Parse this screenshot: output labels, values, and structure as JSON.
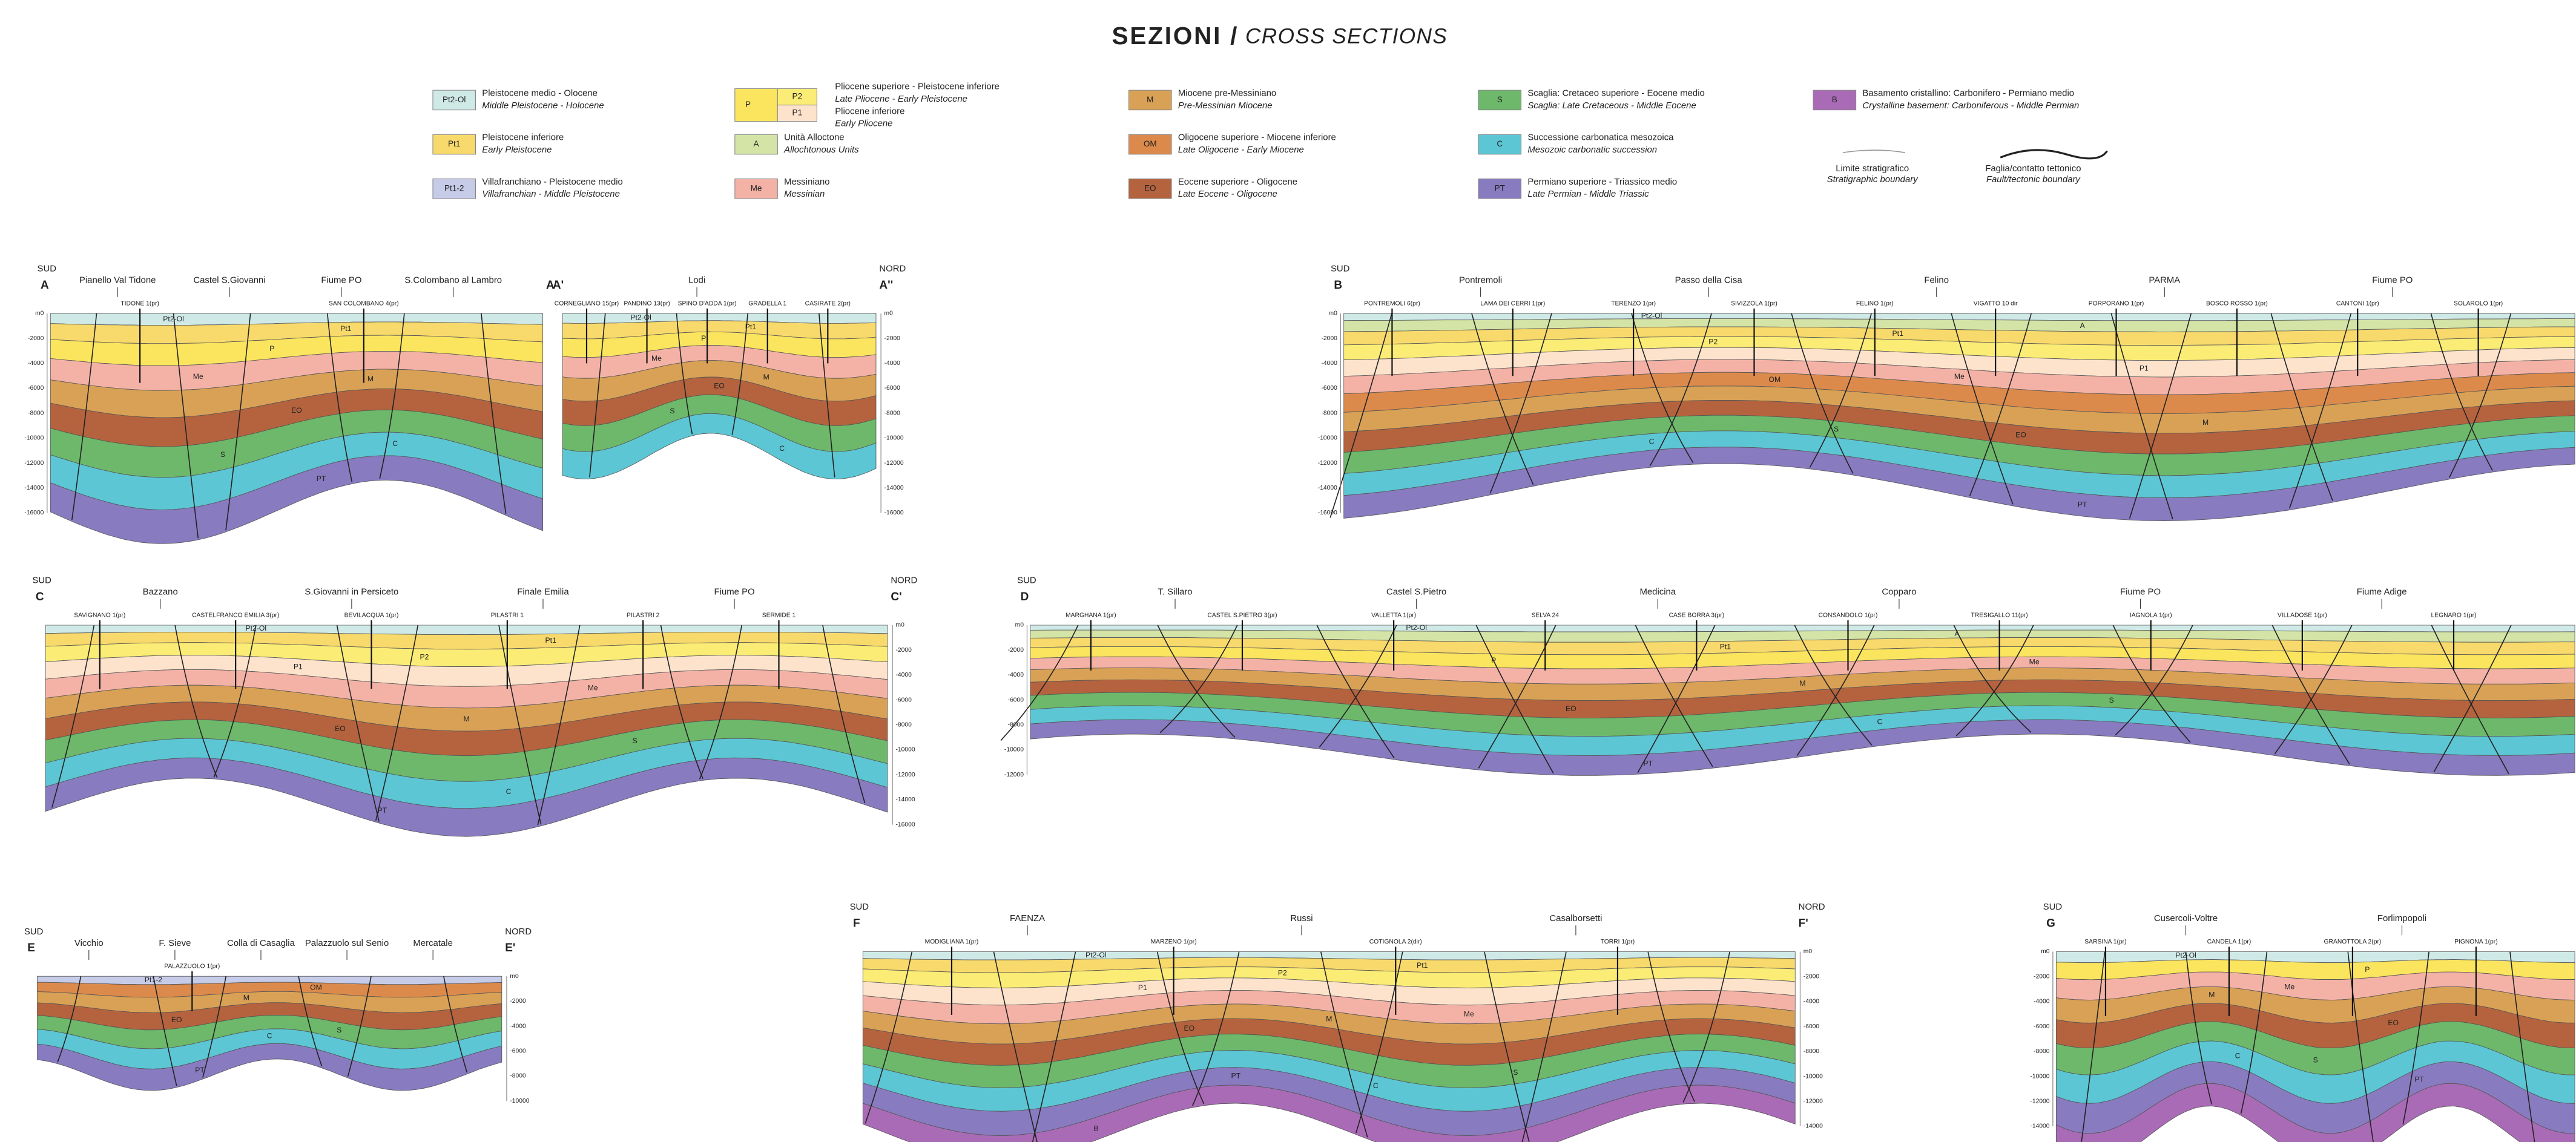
{
  "header": {
    "title": "SEZIONI /",
    "subtitle": "CROSS SECTIONS"
  },
  "legend": {
    "items": [
      {
        "code": "Pt2-Ol",
        "color": "#cfe9e7",
        "lines": [
          "Pleistocene medio - Olocene",
          "Middle Pleistocene - Holocene"
        ]
      },
      {
        "code": "Pt1",
        "color": "#f8d96b",
        "lines": [
          "Pleistocene inferiore",
          "Early Pleistocene"
        ]
      },
      {
        "code": "Pt1-2",
        "color": "#c6cbe8",
        "lines": [
          "Villafranchiano - Pleistocene medio",
          "Villafranchian - Middle Pleistocene"
        ]
      },
      {
        "code": "P",
        "color": "#fbe45e",
        "subs": [
          {
            "code": "P2",
            "color": "#fbec75"
          },
          {
            "code": "P1",
            "color": "#fde2cc"
          }
        ],
        "lines": [
          "Pliocene superiore - Pleistocene inferiore",
          "Late Pliocene - Early Pleistocene",
          "Pliocene inferiore",
          "Early Pliocene"
        ]
      },
      {
        "code": "A",
        "color": "#d3e4a6",
        "lines": [
          "Unità Alloctone",
          "Allochtonous Units"
        ]
      },
      {
        "code": "Me",
        "color": "#f4b2a6",
        "lines": [
          "Messiniano",
          "Messinian"
        ]
      },
      {
        "code": "M",
        "color": "#d9a156",
        "lines": [
          "Miocene pre-Messiniano",
          "Pre-Messinian Miocene"
        ]
      },
      {
        "code": "OM",
        "color": "#dc8a4b",
        "lines": [
          "Oligocene superiore - Miocene inferiore",
          "Late Oligocene - Early Miocene"
        ]
      },
      {
        "code": "EO",
        "color": "#b4633e",
        "lines": [
          "Eocene superiore - Oligocene",
          "Late Eocene - Oligocene"
        ]
      },
      {
        "code": "S",
        "color": "#6db86a",
        "lines": [
          "Scaglia: Cretaceo superiore - Eocene medio",
          "Scaglia: Late Cretaceous - Middle Eocene"
        ]
      },
      {
        "code": "C",
        "color": "#5cc6d4",
        "lines": [
          "Successione carbonatica mesozoica",
          "Mesozoic carbonatic succession"
        ]
      },
      {
        "code": "PT",
        "color": "#887bc0",
        "lines": [
          "Permiano superiore - Triassico medio",
          "Late Permian - Middle Triassic"
        ]
      },
      {
        "code": "B",
        "color": "#a96bb6",
        "lines": [
          "Basamento cristallino: Carbonifero - Permiano medio",
          "Crystalline basement: Carboniferous - Middle Permian"
        ]
      }
    ],
    "boundaries": [
      {
        "lines": [
          "Limite stratigrafico",
          "Stratigraphic boundary"
        ]
      },
      {
        "lines": [
          "Faglia/contatto tettonico",
          "Fault/tectonic boundary"
        ]
      }
    ]
  },
  "sections": [
    {
      "start": "A",
      "end": "A'",
      "left": "SUD",
      "places": [
        "Pianello Val Tidone",
        "Castel S.Giovanni",
        "Fiume PO",
        "S.Colombano al Lambro"
      ],
      "wells": [
        "TIDONE 1(pr)",
        "SAN COLOMBANO 4(pr)"
      ],
      "units": [
        "Pt2-Ol",
        "Pt1",
        "P",
        "Me",
        "M",
        "EO",
        "S",
        "C",
        "PT"
      ],
      "ticks": [
        "m0",
        "-2000",
        "-4000",
        "-6000",
        "-8000",
        "-10000",
        "-12000",
        "-14000",
        "-16000"
      ]
    },
    {
      "start": "A'",
      "end": "A''",
      "right": "NORD",
      "places": [
        "Lodi"
      ],
      "wells": [
        "CORNEGLIANO 15(pr)",
        "PANDINO 13(pr)",
        "SPINO D'ADDA 1(pr)",
        "GRADELLA 1",
        "CASIRATE 2(pr)"
      ],
      "units": [
        "Pt2-Ol",
        "Pt1",
        "P",
        "Me",
        "M",
        "EO",
        "S",
        "C"
      ],
      "ticks": [
        "m0",
        "-2000",
        "-4000",
        "-6000",
        "-8000",
        "-10000",
        "-12000",
        "-14000",
        "-16000"
      ]
    },
    {
      "start": "B",
      "left": "SUD",
      "places": [
        "Pontremoli",
        "Passo della Cisa",
        "Felino",
        "PARMA",
        "Fiume PO"
      ],
      "wells": [
        "PONTREMOLI 6(pr)",
        "LAMA DEI CERRI 1(pr)",
        "TERENZO 1(pr)",
        "SIVIZZOLA 1(pr)",
        "FELINO 1(pr)",
        "VIGATTO 10 dir",
        "PORPORANO 1(pr)",
        "BOSCO ROSSO 1(pr)",
        "CANTONI 1(pr)",
        "SOLAROLO 1(pr)"
      ],
      "units": [
        "Pt2-Ol",
        "A",
        "Pt1",
        "P2",
        "P1",
        "Me",
        "OM",
        "M",
        "EO",
        "S",
        "C",
        "PT"
      ],
      "ticks": [
        "m0",
        "-2000",
        "-4000",
        "-6000",
        "-8000",
        "-10000",
        "-12000",
        "-14000",
        "-16000"
      ]
    },
    {
      "start": "C",
      "end": "C'",
      "left": "SUD",
      "right": "NORD",
      "places": [
        "Bazzano",
        "S.Giovanni in Persiceto",
        "Finale Emilia",
        "Fiume PO"
      ],
      "wells": [
        "SAVIGNANO 1(pr)",
        "CASTELFRANCO EMILIA 3(pr)",
        "BEVILACQUA 1(pr)",
        "PILASTRI 1",
        "PILASTRI 2",
        "SERMIDE 1"
      ],
      "units": [
        "Pt2-Ol",
        "Pt1",
        "P2",
        "P1",
        "Me",
        "M",
        "EO",
        "S",
        "C",
        "PT"
      ],
      "ticks": [
        "m0",
        "-2000",
        "-4000",
        "-6000",
        "-8000",
        "-10000",
        "-12000",
        "-14000",
        "-16000"
      ]
    },
    {
      "start": "D",
      "left": "SUD",
      "places": [
        "T. Sillaro",
        "Castel S.Pietro",
        "Medicina",
        "Copparo",
        "Fiume PO",
        "Fiume Adige"
      ],
      "wells": [
        "MARGHANA 1(pr)",
        "CASTEL S.PIETRO 3(pr)",
        "VALLETTA 1(pr)",
        "SELVA 24",
        "CASE BORRA 3(pr)",
        "CONSANDOLO 1(pr)",
        "TRESIGALLO 11(pr)",
        "IAGNOLA 1(pr)",
        "VILLADOSE 1(pr)",
        "LEGNARO 1(pr)"
      ],
      "units": [
        "Pt2-Ol",
        "A",
        "Pt1",
        "P",
        "Me",
        "M",
        "EO",
        "S",
        "C",
        "PT"
      ],
      "ticks": [
        "m0",
        "-2000",
        "-4000",
        "-6000",
        "-8000",
        "-10000",
        "-12000"
      ]
    },
    {
      "start": "E",
      "end": "E'",
      "left": "SUD",
      "right": "NORD",
      "places": [
        "Vicchio",
        "F. Sieve",
        "Colla di Casaglia",
        "Palazzuolo sul Senio",
        "Mercatale"
      ],
      "wells": [
        "PALAZZUOLO 1(pr)"
      ],
      "units": [
        "Pt1-2",
        "OM",
        "M",
        "EO",
        "S",
        "C",
        "PT"
      ],
      "ticks": [
        "m0",
        "-2000",
        "-4000",
        "-6000",
        "-8000",
        "-10000"
      ]
    },
    {
      "start": "F",
      "end": "F'",
      "left": "SUD",
      "right": "NORD",
      "places": [
        "FAENZA",
        "Russi",
        "Casalborsetti"
      ],
      "wells": [
        "MODIGLIANA 1(pr)",
        "MARZENO 1(pr)",
        "COTIGNOLA 2(dir)",
        "TORRI 1(pr)"
      ],
      "units": [
        "Pt2-Ol",
        "Pt1",
        "P2",
        "P1",
        "Me",
        "M",
        "EO",
        "S",
        "C",
        "PT",
        "B"
      ],
      "ticks": [
        "m0",
        "-2000",
        "-4000",
        "-6000",
        "-8000",
        "-10000",
        "-12000",
        "-14000"
      ]
    },
    {
      "start": "G",
      "left": "SUD",
      "places": [
        "Cusercoli-Voltre",
        "Forlimpopoli"
      ],
      "wells": [
        "SARSINA 1(pr)",
        "CANDELA 1(pr)",
        "GRANOTTOLA 2(pr)",
        "PIGNONA 1(pr)"
      ],
      "units": [
        "Pt2-Ol",
        "P",
        "Me",
        "M",
        "EO",
        "S",
        "C",
        "PT",
        "B"
      ],
      "ticks": [
        "m0",
        "-2000",
        "-4000",
        "-6000",
        "-8000",
        "-10000",
        "-12000",
        "-14000"
      ]
    }
  ]
}
